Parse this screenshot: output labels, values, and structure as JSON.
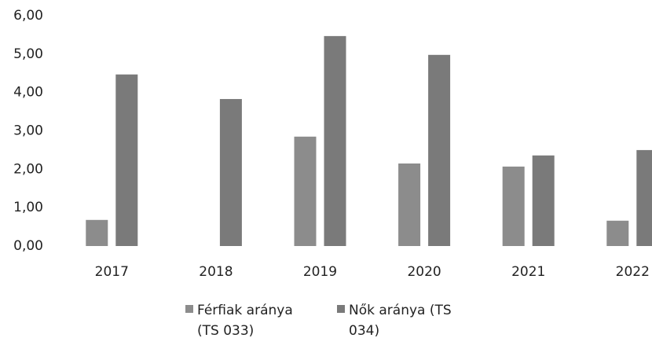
{
  "chart_data": {
    "type": "bar",
    "categories": [
      "2017",
      "2018",
      "2019",
      "2020",
      "2021",
      "2022"
    ],
    "series": [
      {
        "name": "Férfiak aránya (TS 033)",
        "color": "#8c8c8c",
        "values": [
          0.68,
          0,
          2.85,
          2.15,
          2.07,
          0.66
        ]
      },
      {
        "name": "Nők aránya (TS 034)",
        "color": "#7a7a7a",
        "values": [
          4.47,
          3.83,
          5.47,
          4.98,
          2.36,
          2.5
        ]
      }
    ],
    "ylim": [
      0,
      6
    ],
    "yticks": [
      {
        "value": 0,
        "label": "0,00"
      },
      {
        "value": 1,
        "label": "1,00"
      },
      {
        "value": 2,
        "label": "2,00"
      },
      {
        "value": 3,
        "label": "3,00"
      },
      {
        "value": 4,
        "label": "4,00"
      },
      {
        "value": 5,
        "label": "5,00"
      },
      {
        "value": 6,
        "label": "6,00"
      }
    ],
    "grid": false,
    "legend": "bottom"
  }
}
